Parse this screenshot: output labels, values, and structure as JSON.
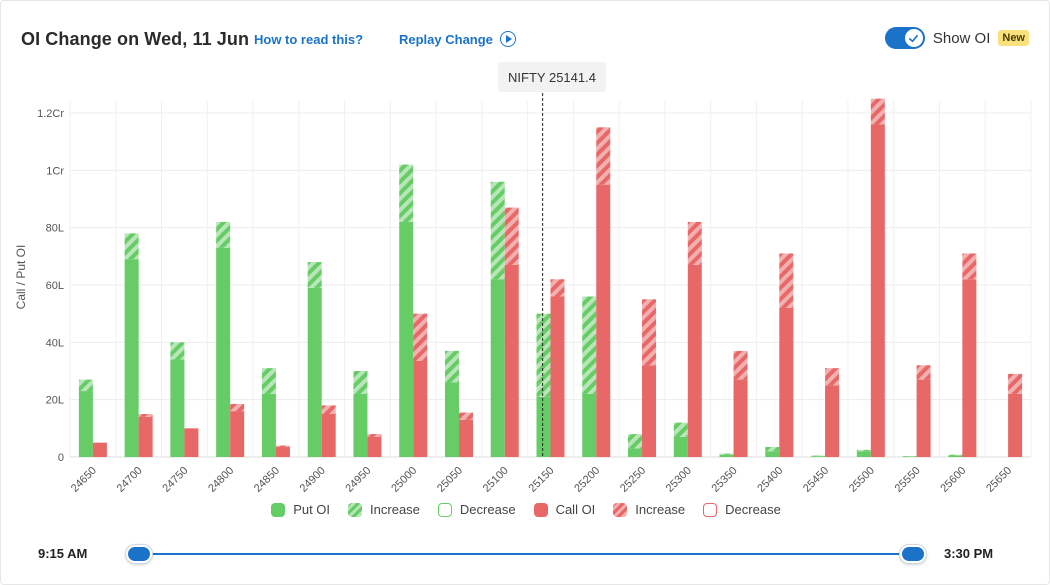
{
  "header": {
    "title": "OI Change on Wed, 11 Jun",
    "how_to_read": "How to read this?",
    "replay": "Replay Change",
    "show_oi_label": "Show OI",
    "new_badge": "New",
    "show_oi_on": true
  },
  "tooltip": {
    "text": "NIFTY 25141.4"
  },
  "colors": {
    "put": "#66cc66",
    "put_stripe": "#b9e6b9",
    "call": "#e86868",
    "call_stripe": "#f3b0b0",
    "accent": "#1a73c9"
  },
  "chart_data": {
    "type": "bar",
    "ylabel": "Call / Put OI",
    "y_ticks": [
      "0",
      "20L",
      "40L",
      "60L",
      "80L",
      "1Cr",
      "1.2Cr"
    ],
    "ylim": [
      0,
      120
    ],
    "y_unit": "Lakh",
    "spot_label": "NIFTY 25141.4",
    "spot_value": 25141.4,
    "grid": true,
    "legend_position": "bottom",
    "categories": [
      "24650",
      "24700",
      "24750",
      "24800",
      "24850",
      "24900",
      "24950",
      "25000",
      "25050",
      "25100",
      "25150",
      "25200",
      "25250",
      "25300",
      "25350",
      "25400",
      "25450",
      "25500",
      "25550",
      "25600",
      "25650"
    ],
    "series": [
      {
        "name": "Put OI",
        "current": [
          27,
          78,
          40,
          82,
          31,
          68,
          30,
          102,
          37,
          96,
          50,
          56,
          8,
          12,
          1.2,
          3.5,
          0.5,
          2.5,
          0.3,
          0.8,
          0
        ],
        "previous": [
          23,
          69,
          34,
          73,
          22,
          59,
          22,
          82,
          26,
          62,
          21,
          22,
          3,
          7,
          0.8,
          2,
          0.3,
          2,
          0.2,
          0.5,
          0
        ]
      },
      {
        "name": "Call OI",
        "current": [
          5,
          15,
          10,
          18.5,
          4,
          18,
          8,
          50,
          15.5,
          87,
          62,
          115,
          55,
          82,
          37,
          71,
          31,
          125,
          32,
          71,
          29
        ],
        "previous": [
          5,
          14,
          10,
          16,
          3.5,
          15,
          7,
          33.5,
          13,
          67,
          56,
          95,
          32,
          67,
          27,
          52,
          25,
          116,
          27,
          62,
          22
        ]
      }
    ]
  },
  "legend": [
    {
      "label": "Put OI",
      "kind": "solid",
      "side": "put"
    },
    {
      "label": "Increase",
      "kind": "stripe",
      "side": "put"
    },
    {
      "label": "Decrease",
      "kind": "outline",
      "side": "put"
    },
    {
      "label": "Call OI",
      "kind": "solid",
      "side": "call"
    },
    {
      "label": "Increase",
      "kind": "stripe",
      "side": "call"
    },
    {
      "label": "Decrease",
      "kind": "outline",
      "side": "call"
    }
  ],
  "slider": {
    "start_label": "9:15 AM",
    "end_label": "3:30 PM"
  }
}
